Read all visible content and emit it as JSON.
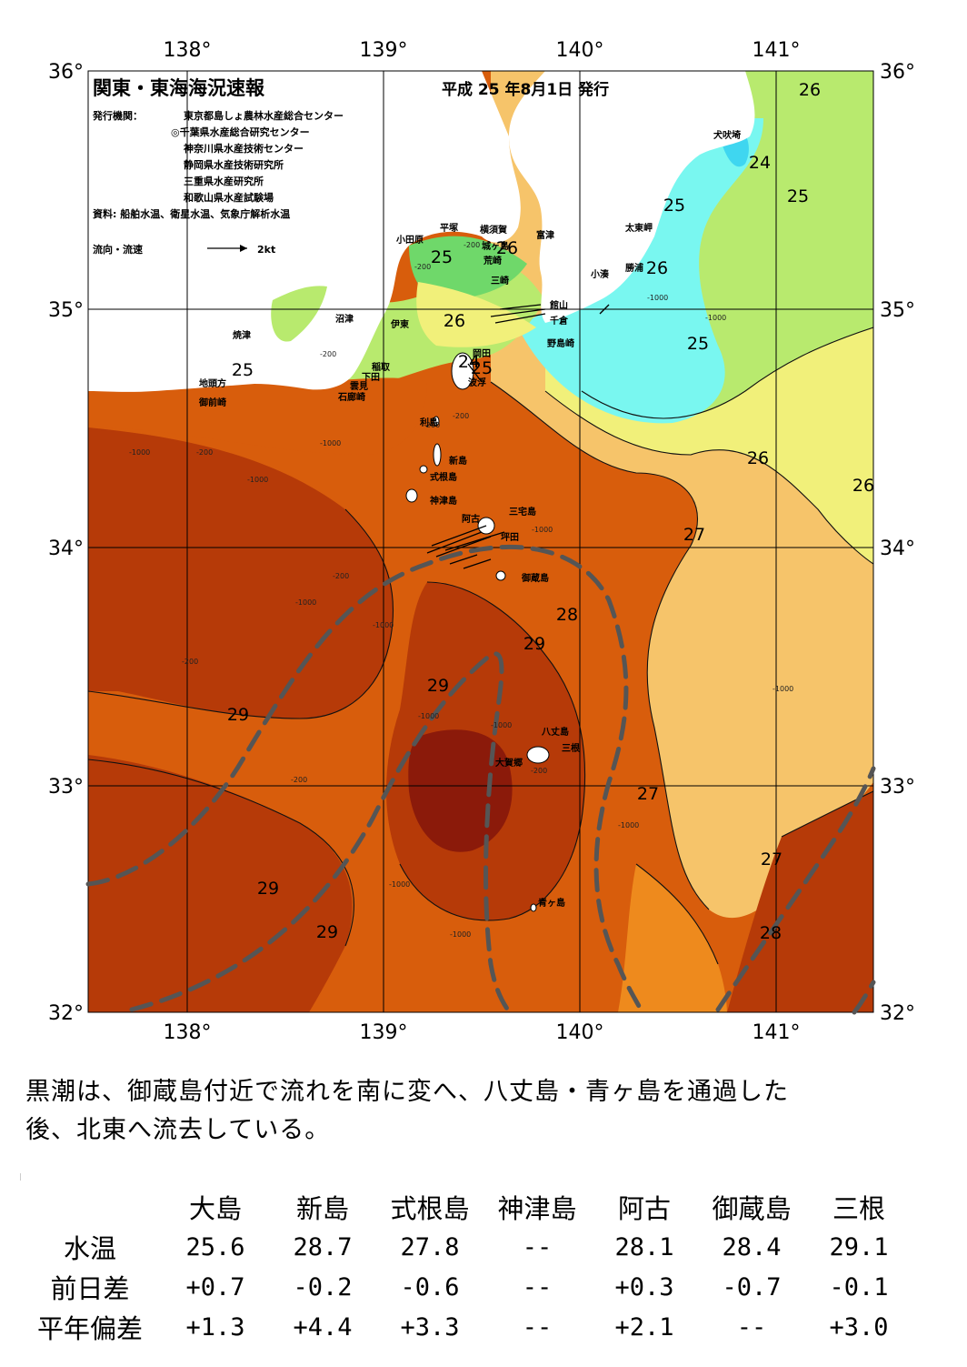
{
  "header": {
    "title": "関東・東海海況速報",
    "date": "平成 25 年8月1日 発行",
    "agency_label": "発行機関：",
    "agencies": [
      "東京都島しょ農林水産総合センター",
      "◎千葉県水産総合研究センター",
      "神奈川県水産技術センター",
      "静岡県水産技術研究所",
      "三重県水産研究所",
      "和歌山県水産試験場"
    ],
    "source": "資料: 船舶水温、衛星水温、気象庁解析水温",
    "current_legend": "流向・流速",
    "current_scale": "2kt"
  },
  "axes": {
    "lon_labels": [
      "138°",
      "139°",
      "140°",
      "141°"
    ],
    "lat_labels": [
      "36°",
      "35°",
      "34°",
      "33°",
      "32°"
    ]
  },
  "colors": {
    "land": "#ffffff",
    "t_29plus": "#8b1a0a",
    "t_29": "#b63a08",
    "t_28": "#d85d0c",
    "t_27": "#ee8a1d",
    "t_26": "#f6c46a",
    "t_25": "#f1f07a",
    "t_24": "#b8ea6e",
    "t_23": "#6fd86a",
    "t_22": "#79f7f0",
    "t_21": "#3fd6f0",
    "kuroshio": "#555555"
  },
  "isotherm_labels": [
    "29",
    "29",
    "29",
    "29",
    "29",
    "28",
    "28",
    "27",
    "27",
    "27",
    "26",
    "26",
    "26",
    "25",
    "25",
    "25",
    "25",
    "25",
    "24",
    "26",
    "24",
    "25",
    "26",
    "26"
  ],
  "depth_labels": [
    "-1000",
    "-200",
    "-1000",
    "-1000",
    "-200",
    "-1000",
    "-1000",
    "-200",
    "-200",
    "-200",
    "-1000",
    "-1000",
    "-1000",
    "-200",
    "-1000",
    "-1000",
    "-200",
    "-200",
    "-1000",
    "-1000",
    "-1000",
    "-200",
    "-200",
    "-1000"
  ],
  "place_names": [
    "犬吠埼",
    "太東岬",
    "勝浦",
    "小湊",
    "富津",
    "館山",
    "千倉",
    "野島崎",
    "横須賀",
    "城ヶ島",
    "荒崎",
    "三崎",
    "平塚",
    "小田原",
    "沼津",
    "伊東",
    "稲取",
    "下田",
    "雲見",
    "石廊崎",
    "焼津",
    "地頭方",
    "御前崎",
    "利島",
    "新島",
    "式根島",
    "神津島",
    "三宅島",
    "阿古",
    "坪田",
    "御蔵島",
    "八丈島",
    "三根",
    "大賀郷",
    "青ヶ島",
    "岡田",
    "波浮"
  ],
  "summary": {
    "line1": "黒潮は、御蔵島付近で流れを南に変へ、八丈島・青ヶ島を通過した",
    "line2": "後、北東へ流去している。"
  },
  "table": {
    "columns": [
      "大島",
      "新島",
      "式根島",
      "神津島",
      "阿古",
      "御蔵島",
      "三根"
    ],
    "rows": [
      {
        "label": "水温",
        "values": [
          "25.6",
          "28.7",
          "27.8",
          "--",
          "28.1",
          "28.4",
          "29.1"
        ]
      },
      {
        "label": "前日差",
        "values": [
          "+0.7",
          "-0.2",
          "-0.6",
          "--",
          "+0.3",
          "-0.7",
          "-0.1"
        ]
      },
      {
        "label": "平年偏差",
        "values": [
          "+1.3",
          "+4.4",
          "+3.3",
          "--",
          "+2.1",
          "--",
          "+3.0"
        ]
      }
    ]
  }
}
